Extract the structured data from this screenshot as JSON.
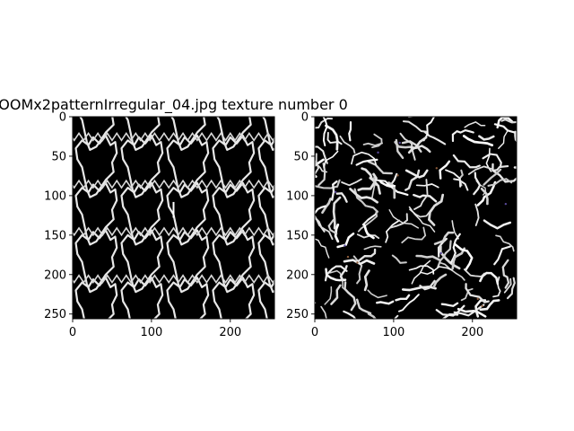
{
  "figure": {
    "title": "OOMx2patternIrregular_04.jpg texture number 0"
  },
  "chart_data": [
    {
      "type": "image",
      "title": "OOMx2patternIrregular_04.jpg texture number 0",
      "xlim": [
        0,
        256
      ],
      "ylim": [
        256,
        0
      ],
      "xticks": [
        0,
        100,
        200
      ],
      "yticks": [
        0,
        50,
        100,
        150,
        200,
        250
      ],
      "content": "tiled irregular white outline pattern on black background",
      "grid": false
    },
    {
      "type": "image",
      "title": "",
      "xlim": [
        0,
        256
      ],
      "ylim": [
        256,
        0
      ],
      "xticks": [
        0,
        100,
        200
      ],
      "yticks": [
        0,
        50,
        100,
        150,
        200,
        250
      ],
      "content": "synthesized irregular white squiggle texture on black background",
      "grid": false
    }
  ]
}
